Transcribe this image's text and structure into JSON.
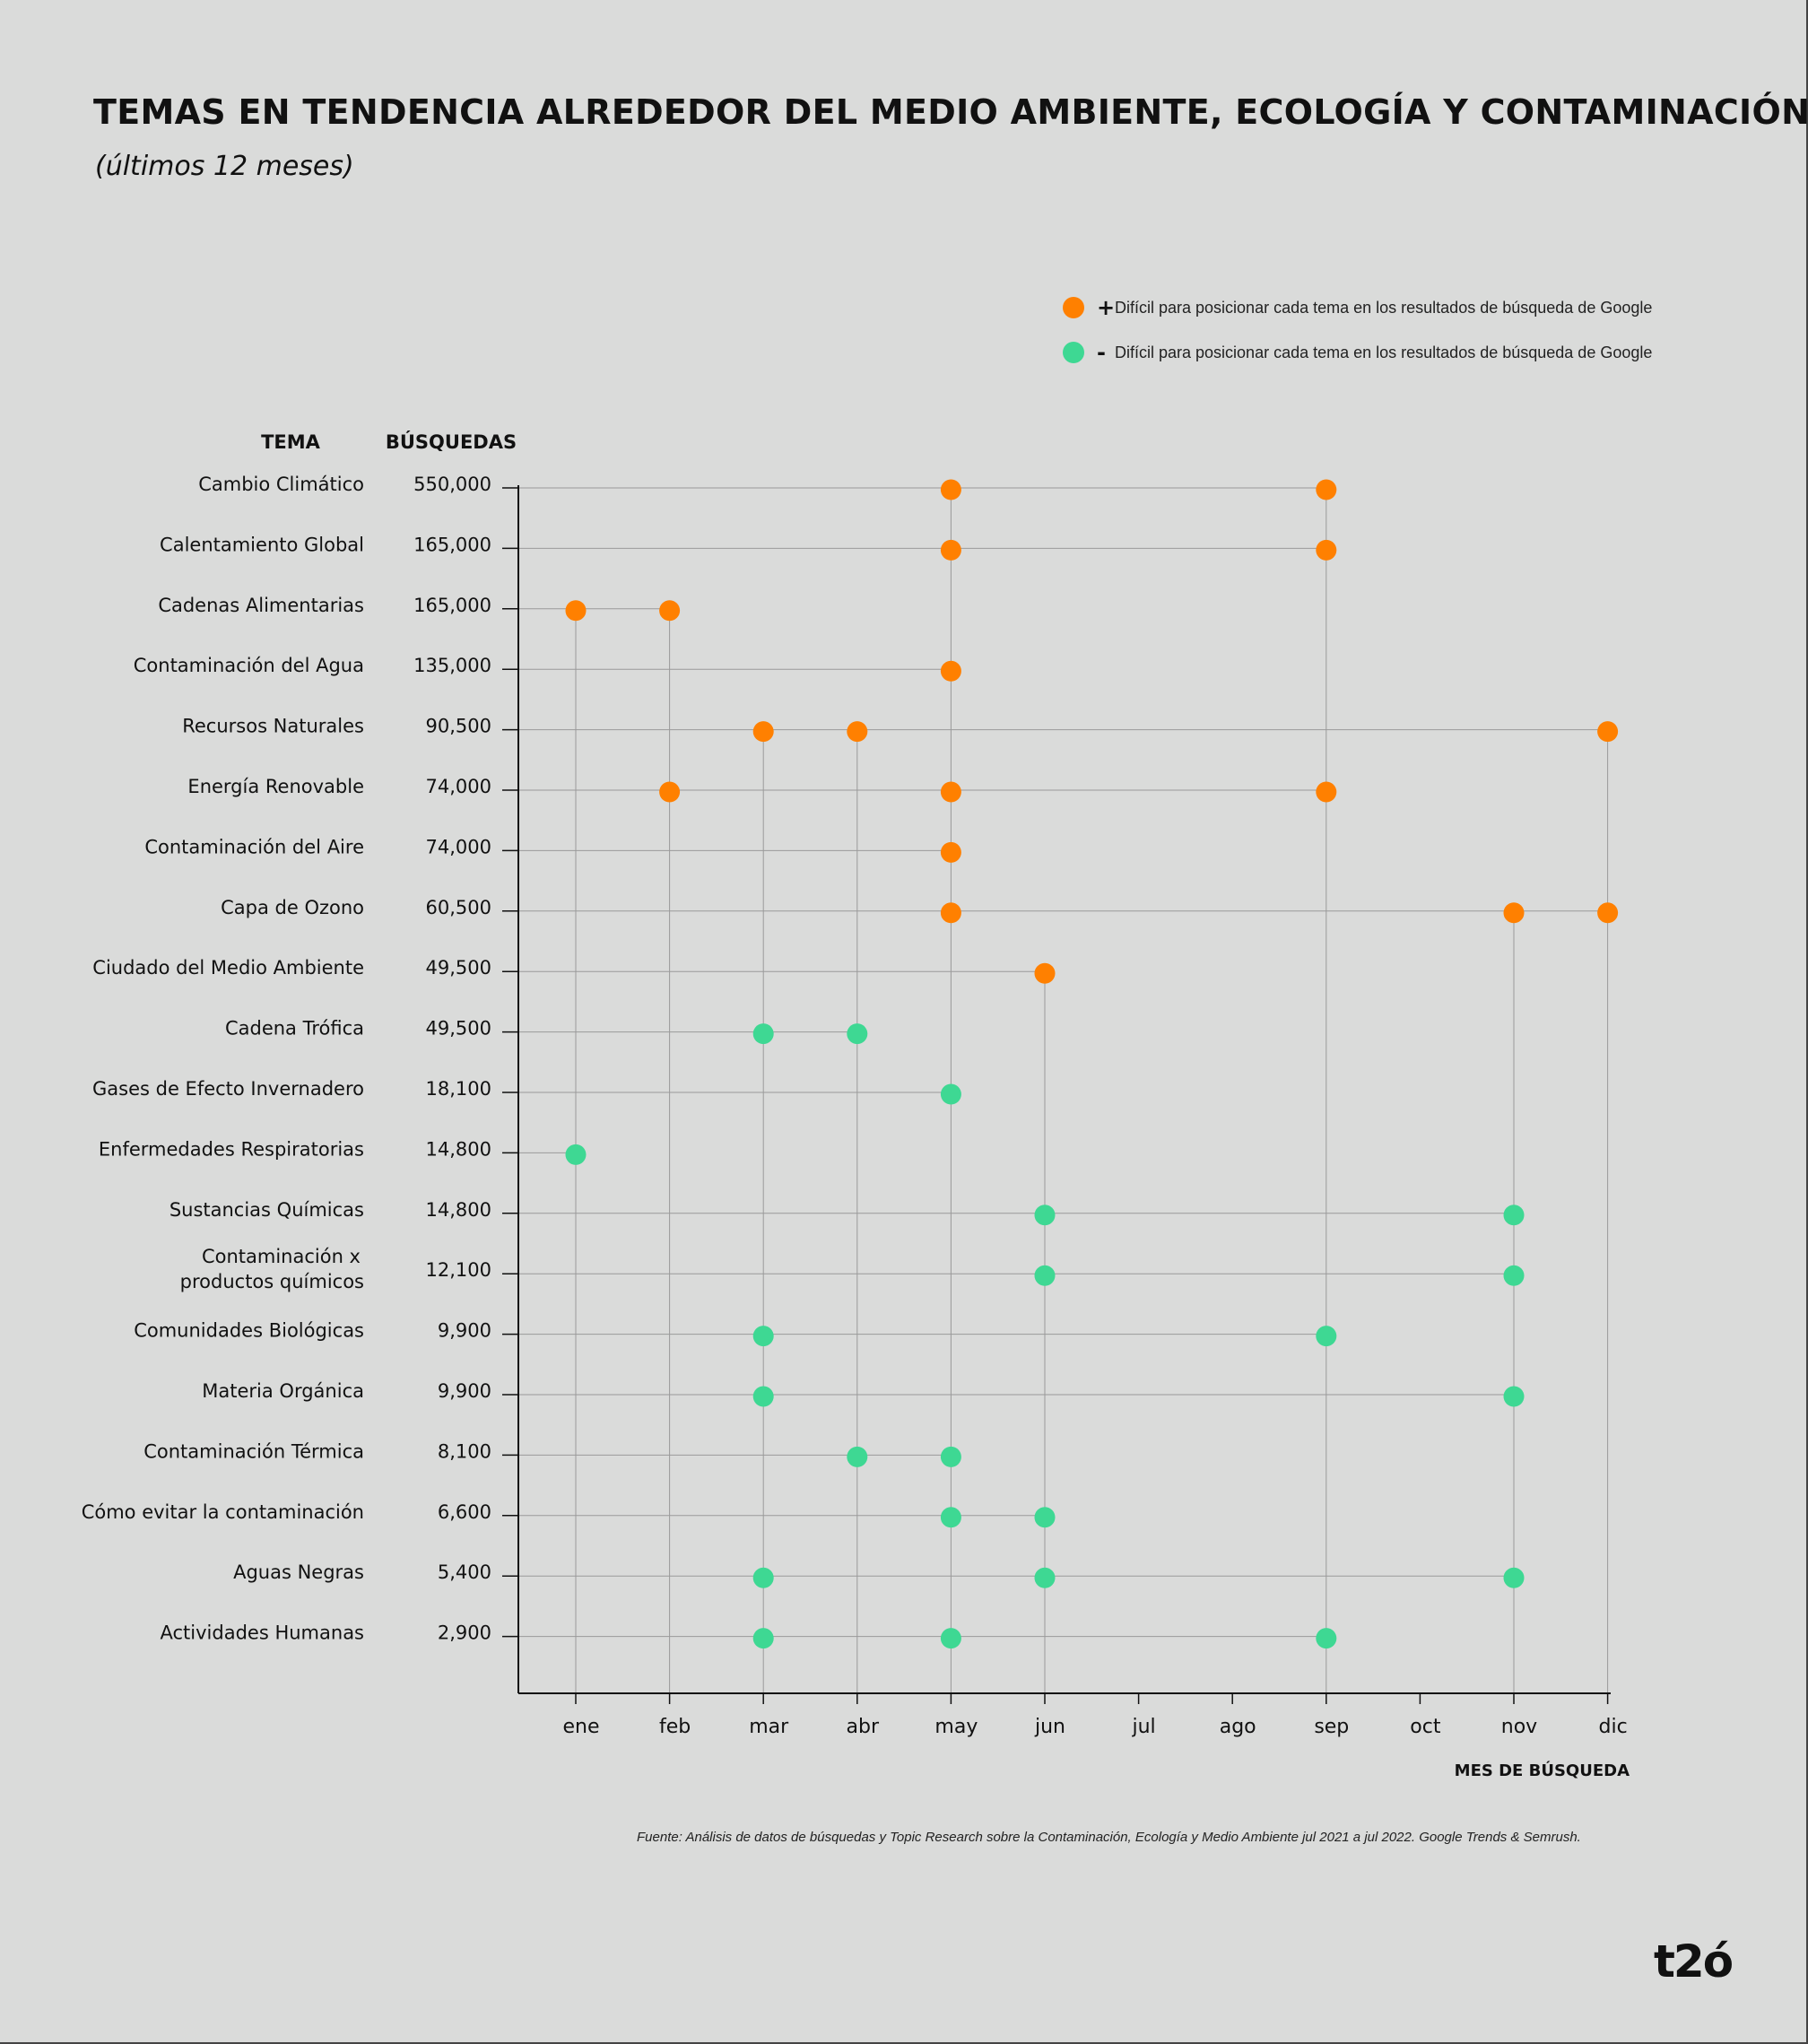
{
  "page": {
    "title": "TEMAS EN TENDENCIA ALREDEDOR DEL MEDIO AMBIENTE, ECOLOGÍA Y CONTAMINACIÓN.",
    "subtitle": "(últimos 12 meses)",
    "source": "Fuente: Análisis de datos de búsquedas y Topic Research sobre la Contaminación, Ecología y Medio Ambiente jul 2021 a jul 2022. Google Trends & Semrush.",
    "logo": "t2ó"
  },
  "legend": [
    {
      "sign": "+",
      "label": "Difícil para posicionar cada tema en los resultados de búsqueda de Google",
      "color": "#ff8000"
    },
    {
      "sign": "-",
      "label": "Difícil para posicionar cada tema en los resultados de búsqueda de Google",
      "color": "#3ed893"
    }
  ],
  "chart_data": {
    "type": "scatter",
    "topic_header": "TEMA",
    "searches_header": "BÚSQUEDAS",
    "xlabel": "MES DE BÚSQUEDA",
    "months": [
      "ene",
      "feb",
      "mar",
      "abr",
      "may",
      "jun",
      "jul",
      "ago",
      "sep",
      "oct",
      "nov",
      "dic"
    ],
    "colors": {
      "high": "#ff8000",
      "low": "#3ed893"
    },
    "rows": [
      {
        "topic": "Cambio Climático",
        "searches": "550,000",
        "difficulty": "high",
        "months": [
          "may",
          "sep"
        ]
      },
      {
        "topic": "Calentamiento Global",
        "searches": "165,000",
        "difficulty": "high",
        "months": [
          "may",
          "sep"
        ]
      },
      {
        "topic": "Cadenas Alimentarias",
        "searches": "165,000",
        "difficulty": "high",
        "months": [
          "ene",
          "feb"
        ]
      },
      {
        "topic": "Contaminación del Agua",
        "searches": "135,000",
        "difficulty": "high",
        "months": [
          "may"
        ]
      },
      {
        "topic": "Recursos Naturales",
        "searches": "90,500",
        "difficulty": "high",
        "months": [
          "mar",
          "abr",
          "dic"
        ]
      },
      {
        "topic": "Energía Renovable",
        "searches": "74,000",
        "difficulty": "high",
        "months": [
          "feb",
          "may",
          "sep"
        ]
      },
      {
        "topic": "Contaminación del Aire",
        "searches": "74,000",
        "difficulty": "high",
        "months": [
          "may"
        ]
      },
      {
        "topic": "Capa de Ozono",
        "searches": "60,500",
        "difficulty": "high",
        "months": [
          "may",
          "nov",
          "dic"
        ]
      },
      {
        "topic": "Ciudado del Medio Ambiente",
        "searches": "49,500",
        "difficulty": "high",
        "months": [
          "jun"
        ]
      },
      {
        "topic": "Cadena Trófica",
        "searches": "49,500",
        "difficulty": "low",
        "months": [
          "mar",
          "abr"
        ]
      },
      {
        "topic": "Gases de Efecto Invernadero",
        "searches": "18,100",
        "difficulty": "low",
        "months": [
          "may"
        ]
      },
      {
        "topic": "Enfermedades Respiratorias",
        "searches": "14,800",
        "difficulty": "low",
        "months": [
          "ene"
        ]
      },
      {
        "topic": "Sustancias Químicas",
        "searches": "14,800",
        "difficulty": "low",
        "months": [
          "jun",
          "nov"
        ]
      },
      {
        "topic": [
          "Contaminación x",
          "productos químicos"
        ],
        "searches": "12,100",
        "difficulty": "low",
        "months": [
          "jun",
          "nov"
        ]
      },
      {
        "topic": "Comunidades Biológicas",
        "searches": "9,900",
        "difficulty": "low",
        "months": [
          "mar",
          "sep"
        ]
      },
      {
        "topic": "Materia Orgánica",
        "searches": "9,900",
        "difficulty": "low",
        "months": [
          "mar",
          "nov"
        ]
      },
      {
        "topic": "Contaminación Térmica",
        "searches": "8,100",
        "difficulty": "low",
        "months": [
          "abr",
          "may"
        ]
      },
      {
        "topic": "Cómo evitar la contaminación",
        "searches": "6,600",
        "difficulty": "low",
        "months": [
          "may",
          "jun"
        ]
      },
      {
        "topic": "Aguas Negras",
        "searches": "5,400",
        "difficulty": "low",
        "months": [
          "mar",
          "jun",
          "nov"
        ]
      },
      {
        "topic": "Actividades Humanas",
        "searches": "2,900",
        "difficulty": "low",
        "months": [
          "mar",
          "may",
          "sep"
        ]
      }
    ]
  }
}
